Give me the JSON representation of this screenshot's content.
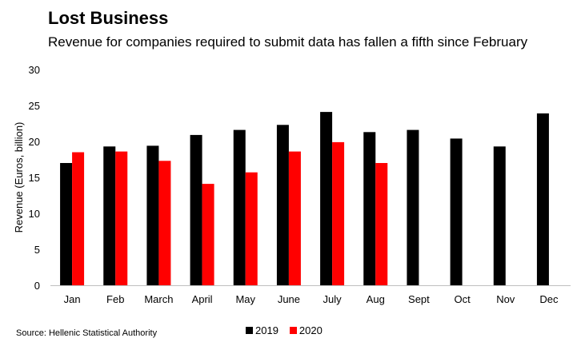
{
  "chart_data": {
    "type": "bar",
    "title": "Lost Business",
    "subtitle": "Revenue for companies required to submit data has fallen a fifth since February",
    "ylabel": "Revenue (Euros, billion)",
    "xlabel": "",
    "ylim": [
      0,
      30
    ],
    "yticks": [
      "0",
      "5",
      "10",
      "15",
      "20",
      "25",
      "30"
    ],
    "grid": false,
    "legend_position": "bottom",
    "categories": [
      "Jan",
      "Feb",
      "March",
      "April",
      "May",
      "June",
      "July",
      "Aug",
      "Sept",
      "Oct",
      "Nov",
      "Dec"
    ],
    "series": [
      {
        "name": "2019",
        "color": "#000000",
        "values": [
          17.0,
          19.3,
          19.4,
          20.9,
          21.6,
          22.3,
          24.1,
          21.3,
          21.6,
          20.4,
          19.3,
          23.9
        ]
      },
      {
        "name": "2020",
        "color": "#ff0000",
        "values": [
          18.5,
          18.6,
          17.3,
          14.1,
          15.7,
          18.6,
          19.9,
          17.0,
          null,
          null,
          null,
          null
        ]
      }
    ],
    "source": "Source: Hellenic Statistical Authority"
  }
}
